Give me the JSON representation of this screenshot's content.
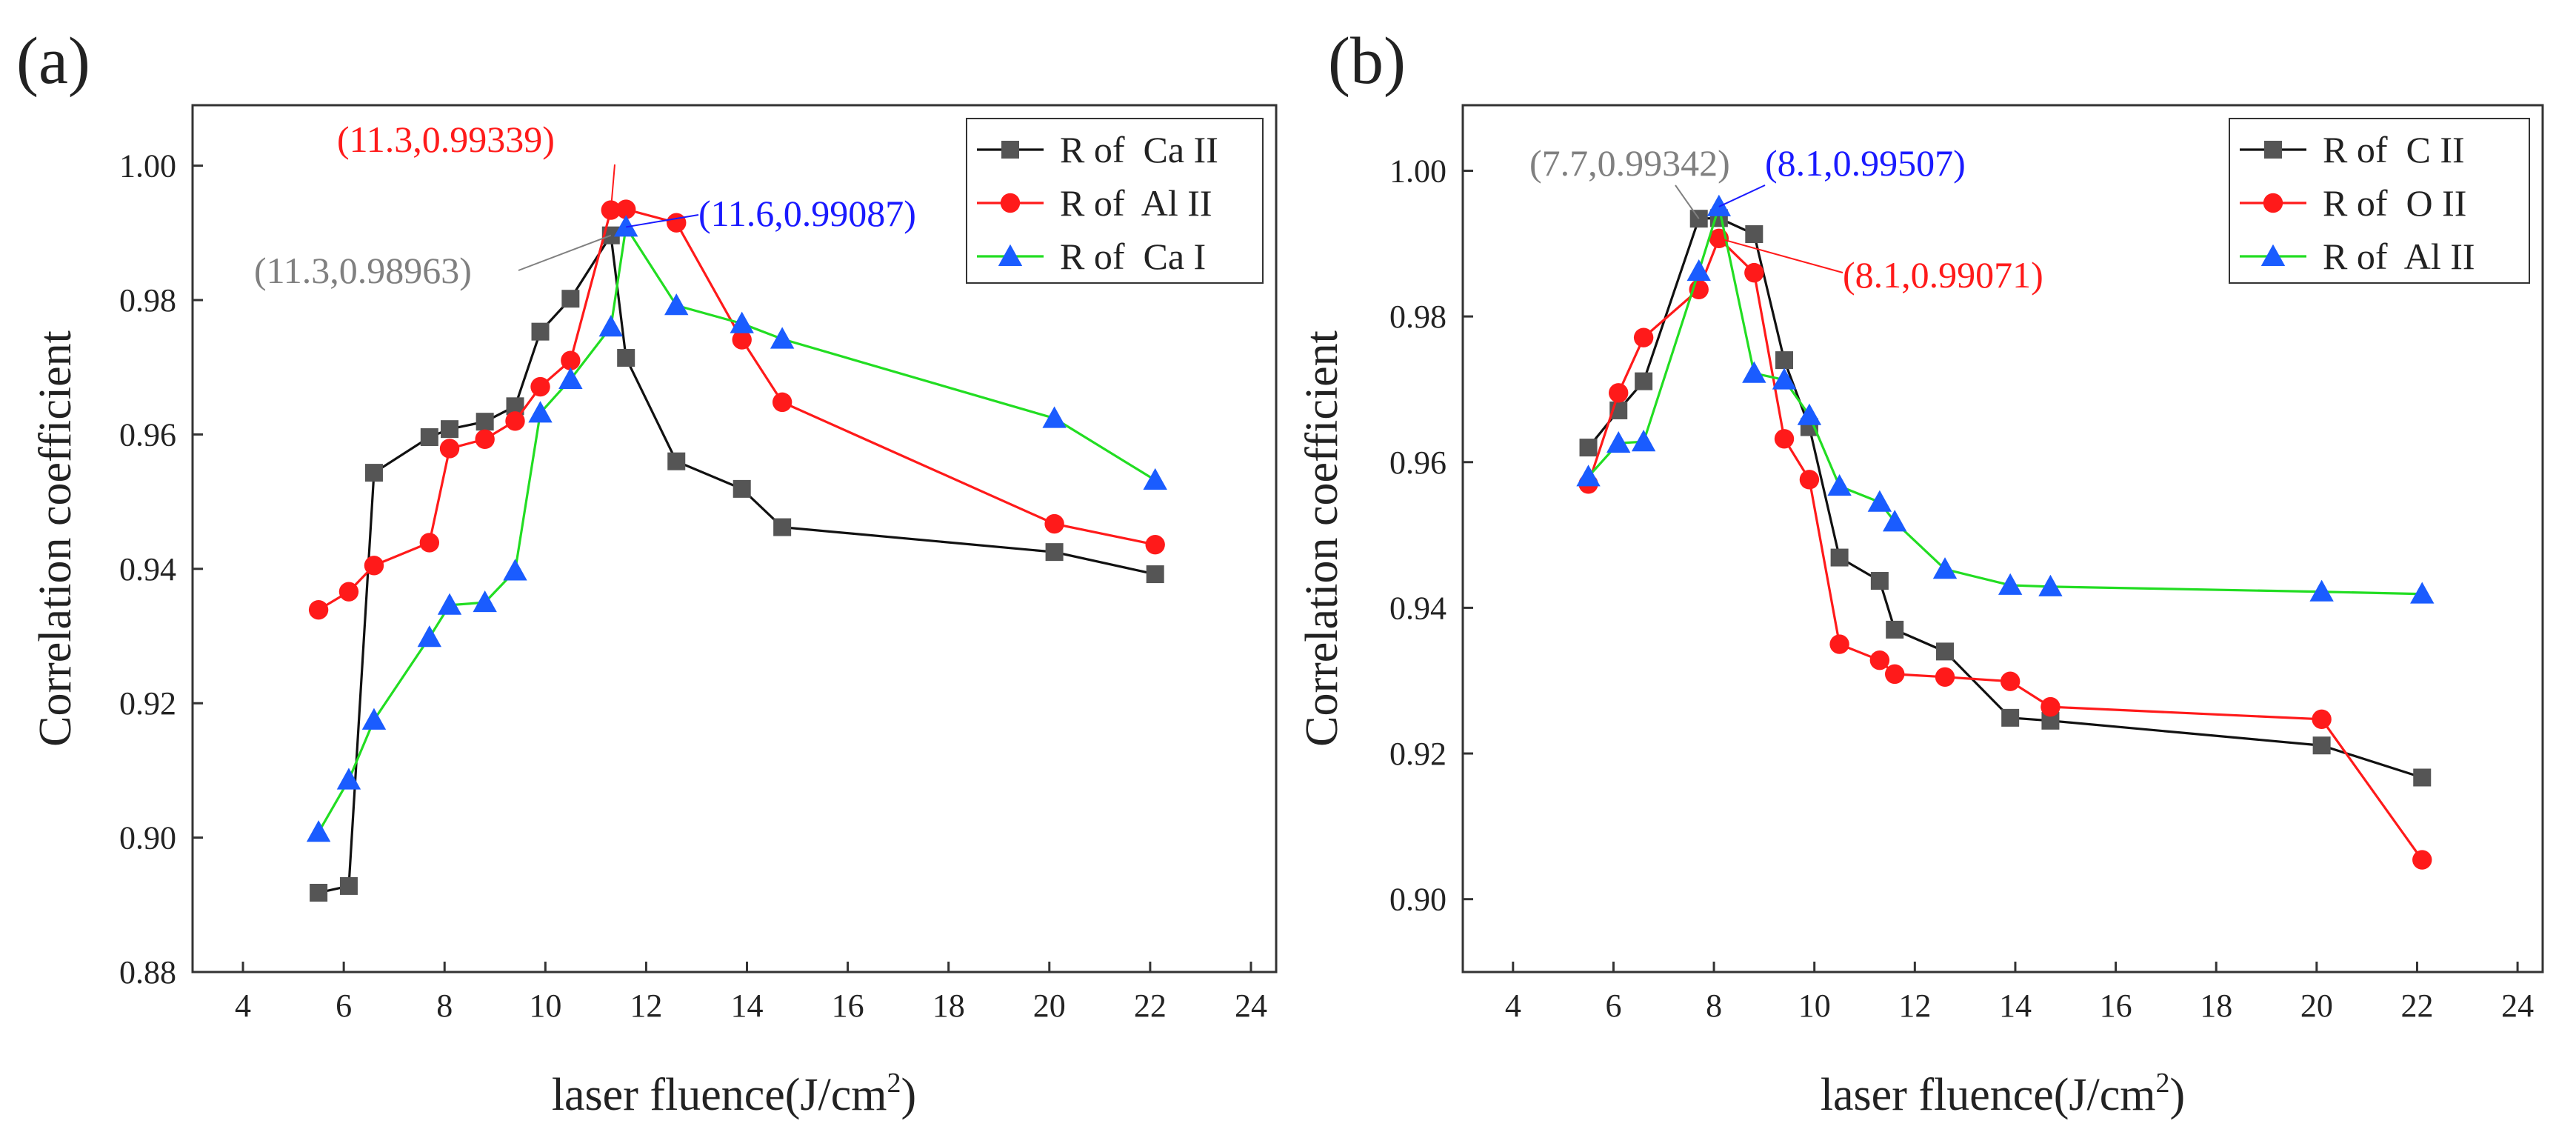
{
  "figure": {
    "background": "#ffffff"
  },
  "chart_data": [
    {
      "id": "a",
      "panel_label": "(a)",
      "type": "line",
      "xlabel": "laser fluence(J/cm",
      "xlabel_unit_sup": "2",
      "xlabel_close": ")",
      "ylabel": "Correlation coefficient",
      "xlim": [
        3,
        24.5
      ],
      "ylim": [
        0.88,
        1.009
      ],
      "xticks": [
        4,
        6,
        8,
        10,
        12,
        14,
        16,
        18,
        20,
        22,
        24
      ],
      "yticks": [
        0.88,
        0.9,
        0.92,
        0.94,
        0.96,
        0.98,
        1.0
      ],
      "ytick_labels": [
        "0.88",
        "0.90",
        "0.92",
        "0.94",
        "0.96",
        "0.98",
        "1.00"
      ],
      "legend_position": "top-right",
      "series": [
        {
          "name": "R of  Ca II",
          "color": "#111111",
          "marker_color": "#555555",
          "marker": "square",
          "x": [
            5.5,
            6.1,
            6.6,
            7.7,
            8.1,
            8.8,
            9.4,
            9.9,
            10.5,
            11.3,
            11.6,
            12.6,
            13.9,
            14.7,
            20.1,
            22.1
          ],
          "y": [
            0.8918,
            0.8928,
            0.9543,
            0.9596,
            0.9608,
            0.9619,
            0.9642,
            0.9753,
            0.9802,
            0.98963,
            0.9714,
            0.956,
            0.9519,
            0.9462,
            0.9425,
            0.9392
          ]
        },
        {
          "name": "R of  Al II",
          "color": "#ff1a1a",
          "marker_color": "#ff1a1a",
          "marker": "circle",
          "x": [
            5.5,
            6.1,
            6.6,
            7.7,
            8.1,
            8.8,
            9.4,
            9.9,
            10.5,
            11.3,
            11.6,
            12.6,
            13.9,
            14.7,
            20.1,
            22.1
          ],
          "y": [
            0.9339,
            0.9366,
            0.9405,
            0.9439,
            0.9579,
            0.9593,
            0.962,
            0.9671,
            0.971,
            0.99339,
            0.9935,
            0.9915,
            0.9741,
            0.9648,
            0.9467,
            0.9436
          ]
        },
        {
          "name": "R of  Ca I",
          "color": "#22dd22",
          "marker_color": "#1a5cff",
          "marker": "triangle",
          "x": [
            5.5,
            6.1,
            6.6,
            7.7,
            8.1,
            8.8,
            9.4,
            9.9,
            10.5,
            11.3,
            11.6,
            12.6,
            13.9,
            14.7,
            20.1,
            22.1
          ],
          "y": [
            0.9008,
            0.9086,
            0.9175,
            0.9298,
            0.9346,
            0.935,
            0.9397,
            0.9632,
            0.9682,
            0.976,
            0.99087,
            0.9792,
            0.9765,
            0.9742,
            0.9624,
            0.9532
          ]
        }
      ],
      "annotations": [
        {
          "text": "(11.3,0.99339)",
          "color": "#ff1a1a",
          "x": 11.3,
          "y": 0.99339
        },
        {
          "text": "(11.6,0.99087)",
          "color": "#1a1aff",
          "x": 11.6,
          "y": 0.99087
        },
        {
          "text": "(11.3,0.98963)",
          "color": "#808080",
          "x": 11.3,
          "y": 0.98963
        }
      ]
    },
    {
      "id": "b",
      "panel_label": "(b)",
      "type": "line",
      "xlabel": "laser fluence(J/cm",
      "xlabel_unit_sup": "2",
      "xlabel_close": ")",
      "ylabel": "Correlation coefficient",
      "xlim": [
        3,
        24.5
      ],
      "ylim": [
        0.89,
        1.009
      ],
      "xticks": [
        4,
        6,
        8,
        10,
        12,
        14,
        16,
        18,
        20,
        22,
        24
      ],
      "yticks": [
        0.9,
        0.92,
        0.94,
        0.96,
        0.98,
        1.0
      ],
      "ytick_labels": [
        "0.90",
        "0.92",
        "0.94",
        "0.96",
        "0.98",
        "1.00"
      ],
      "legend_position": "top-right",
      "series": [
        {
          "name": "R of  C II",
          "color": "#111111",
          "marker_color": "#555555",
          "marker": "square",
          "x": [
            5.5,
            6.1,
            6.6,
            7.7,
            8.1,
            8.8,
            9.4,
            9.9,
            10.5,
            11.3,
            11.6,
            12.6,
            13.9,
            14.7,
            20.1,
            22.1
          ],
          "y": [
            0.962,
            0.9671,
            0.9711,
            0.99342,
            0.9935,
            0.9913,
            0.974,
            0.9648,
            0.9469,
            0.9437,
            0.937,
            0.934,
            0.9249,
            0.9245,
            0.9211,
            0.9167
          ]
        },
        {
          "name": "R of  O II",
          "color": "#ff1a1a",
          "marker_color": "#ff1a1a",
          "marker": "circle",
          "x": [
            5.5,
            6.1,
            6.6,
            7.7,
            8.1,
            8.8,
            9.4,
            9.9,
            10.5,
            11.3,
            11.6,
            12.6,
            13.9,
            14.7,
            20.1,
            22.1
          ],
          "y": [
            0.957,
            0.9695,
            0.9771,
            0.9837,
            0.99071,
            0.986,
            0.9632,
            0.9576,
            0.935,
            0.9328,
            0.9309,
            0.9305,
            0.9299,
            0.9264,
            0.9247,
            0.9054
          ]
        },
        {
          "name": "R of  Al II",
          "color": "#22dd22",
          "marker_color": "#1a5cff",
          "marker": "triangle",
          "x": [
            5.5,
            6.1,
            6.6,
            7.7,
            8.1,
            8.8,
            9.4,
            9.9,
            10.5,
            11.3,
            11.6,
            12.6,
            13.9,
            14.7,
            20.1,
            22.1
          ],
          "y": [
            0.958,
            0.9626,
            0.9628,
            0.9862,
            0.99507,
            0.9722,
            0.9713,
            0.9664,
            0.9567,
            0.9545,
            0.9518,
            0.9453,
            0.9431,
            0.9429,
            0.9422,
            0.9419
          ]
        }
      ],
      "annotations": [
        {
          "text": "(7.7,0.99342)",
          "color": "#808080",
          "x": 7.7,
          "y": 0.99342
        },
        {
          "text": "(8.1,0.99507)",
          "color": "#1a1aff",
          "x": 8.1,
          "y": 0.99507
        },
        {
          "text": "(8.1,0.99071)",
          "color": "#ff1a1a",
          "x": 8.1,
          "y": 0.99071
        }
      ]
    }
  ]
}
